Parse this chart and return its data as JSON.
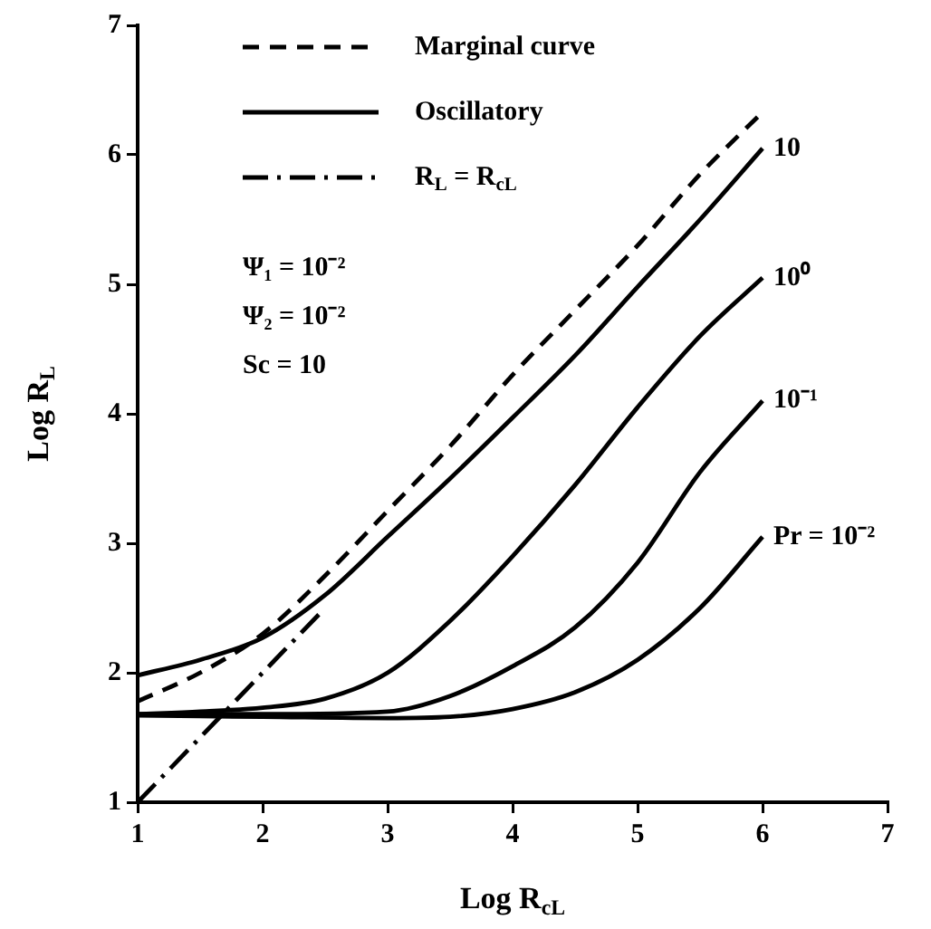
{
  "chart_data": {
    "type": "line",
    "xlabel": "Log R$_{cL}$",
    "ylabel": "Log R$_{L}$",
    "xlim": [
      1,
      7
    ],
    "xticks": [
      1,
      2,
      3,
      4,
      5,
      6,
      7
    ],
    "ylim": [
      1,
      7
    ],
    "yticks": [
      1,
      2,
      3,
      4,
      5,
      6,
      7
    ],
    "grid": false,
    "legend": "top left",
    "marker": "none",
    "series": [
      {
        "name": "Marginal curve",
        "color": "#000000",
        "line_style": "dashed",
        "x": [
          1,
          1.5,
          2,
          2.5,
          3,
          3.5,
          4,
          4.5,
          5,
          5.5,
          6
        ],
        "values": [
          1.78,
          2.0,
          2.3,
          2.75,
          3.25,
          3.75,
          4.3,
          4.8,
          5.3,
          5.85,
          6.33
        ]
      },
      {
        "name": "10",
        "color": "#000000",
        "line_style": "solid",
        "x": [
          1,
          1.5,
          2,
          2.5,
          3,
          3.5,
          4,
          4.5,
          5,
          5.5,
          6
        ],
        "values": [
          1.98,
          2.1,
          2.27,
          2.6,
          3.05,
          3.5,
          3.97,
          4.45,
          4.98,
          5.5,
          6.05
        ]
      },
      {
        "name": "10⁰",
        "color": "#000000",
        "line_style": "solid",
        "x": [
          1,
          1.5,
          2,
          2.5,
          3,
          3.5,
          4,
          4.5,
          5,
          5.5,
          6
        ],
        "values": [
          1.68,
          1.7,
          1.73,
          1.8,
          2.0,
          2.4,
          2.9,
          3.45,
          4.05,
          4.6,
          5.05
        ]
      },
      {
        "name": "10⁻¹",
        "color": "#000000",
        "line_style": "solid",
        "x": [
          1,
          2,
          3,
          3.5,
          4,
          4.5,
          5,
          5.5,
          6
        ],
        "values": [
          1.68,
          1.68,
          1.7,
          1.82,
          2.05,
          2.35,
          2.85,
          3.55,
          4.1
        ]
      },
      {
        "name": "Pr = 10⁻²",
        "color": "#000000",
        "line_style": "solid",
        "x": [
          1,
          2,
          3,
          3.5,
          4,
          4.5,
          5,
          5.5,
          6
        ],
        "values": [
          1.67,
          1.66,
          1.65,
          1.66,
          1.72,
          1.85,
          2.1,
          2.5,
          3.05
        ]
      },
      {
        "name": "R$_{L}$ = R$_{cL}$",
        "color": "#000000",
        "line_style": "dashdot",
        "x": [
          1,
          2.45
        ],
        "values": [
          1,
          2.45
        ]
      }
    ],
    "annotations": [
      "Oscillatory",
      "Ψ₁ = 10⁻²",
      "Ψ₂ = 10⁻²",
      "Sc = 10"
    ]
  }
}
